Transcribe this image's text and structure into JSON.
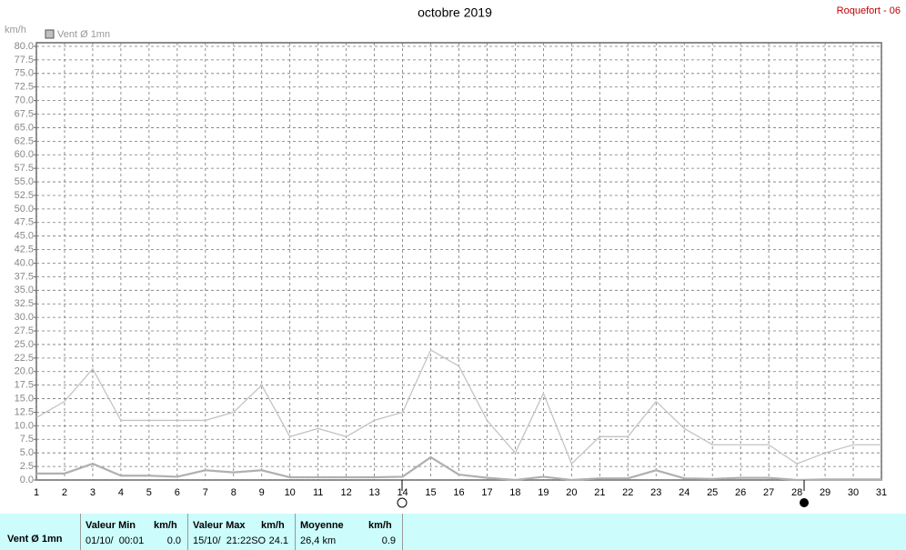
{
  "chart_data": {
    "type": "line",
    "title": "octobre 2019",
    "station": "Roquefort - 06",
    "y_unit": "km/h",
    "x": [
      1,
      2,
      3,
      4,
      5,
      6,
      7,
      8,
      9,
      10,
      11,
      12,
      13,
      14,
      15,
      16,
      17,
      18,
      19,
      20,
      21,
      22,
      23,
      24,
      25,
      26,
      27,
      28,
      29,
      30,
      31
    ],
    "xlim": [
      1,
      31
    ],
    "xticks": [
      1,
      2,
      3,
      4,
      5,
      6,
      7,
      8,
      9,
      10,
      11,
      12,
      13,
      14,
      15,
      16,
      17,
      18,
      19,
      20,
      21,
      22,
      23,
      24,
      25,
      26,
      27,
      28,
      29,
      30,
      31
    ],
    "ylim": [
      0,
      80
    ],
    "yticks": [
      {
        "value": 0,
        "label": "0.0"
      },
      2.5,
      {
        "value": 5,
        "label": "5.0"
      },
      7.5,
      {
        "value": 10,
        "label": "10.0"
      },
      12.5,
      {
        "value": 15,
        "label": "15.0"
      },
      17.5,
      {
        "value": 20,
        "label": "20.0"
      },
      22.5,
      {
        "value": 25,
        "label": "25.0"
      },
      27.5,
      {
        "value": 30,
        "label": "30.0"
      },
      32.5,
      {
        "value": 35,
        "label": "35.0"
      },
      37.5,
      {
        "value": 40,
        "label": "40.0"
      },
      42.5,
      {
        "value": 45,
        "label": "45.0"
      },
      47.5,
      {
        "value": 50,
        "label": "50.0"
      },
      52.5,
      {
        "value": 55,
        "label": "55.0"
      },
      57.5,
      {
        "value": 60,
        "label": "60.0"
      },
      62.5,
      {
        "value": 65,
        "label": "65.0"
      },
      67.5,
      {
        "value": 70,
        "label": "70.0"
      },
      72.5,
      {
        "value": 75,
        "label": "75.0"
      },
      77.5,
      {
        "value": 80,
        "label": "80.0"
      }
    ],
    "grid": true,
    "series": [
      {
        "color": "#c4c4c4",
        "values": [
          11.5,
          14.5,
          20.5,
          11,
          11,
          11,
          11,
          12.5,
          17.5,
          8,
          9.5,
          8,
          11,
          12.5,
          24,
          21,
          11,
          5,
          16,
          3,
          8,
          8,
          14.5,
          9.5,
          6.5,
          6.5,
          6.5,
          3,
          5,
          6.5,
          6.5
        ]
      },
      {
        "name": "Vent Ø 1mn",
        "color": "#b0b0b0",
        "values": [
          1.2,
          1.2,
          3,
          0.8,
          0.8,
          0.6,
          1.8,
          1.4,
          1.8,
          0.5,
          0.5,
          0.5,
          0.5,
          0.6,
          4.2,
          1,
          0.4,
          0,
          0.6,
          0,
          0.3,
          0.3,
          1.8,
          0.3,
          0.2,
          0.4,
          0.4,
          0,
          0.1,
          0.1,
          0.1
        ]
      }
    ]
  },
  "stats": {
    "label": "Vent Ø 1mn",
    "min": {
      "title": "Valeur Min",
      "unit": "km/h",
      "date": "01/10/  00:01",
      "value": "0.0"
    },
    "max": {
      "title": "Valeur Max",
      "unit": "km/h",
      "date": "15/10/  21:22SO",
      "value": "24.1"
    },
    "avg": {
      "title": "Moyenne",
      "unit": "km/h",
      "date": "26,4 km",
      "value": "0.9"
    }
  }
}
